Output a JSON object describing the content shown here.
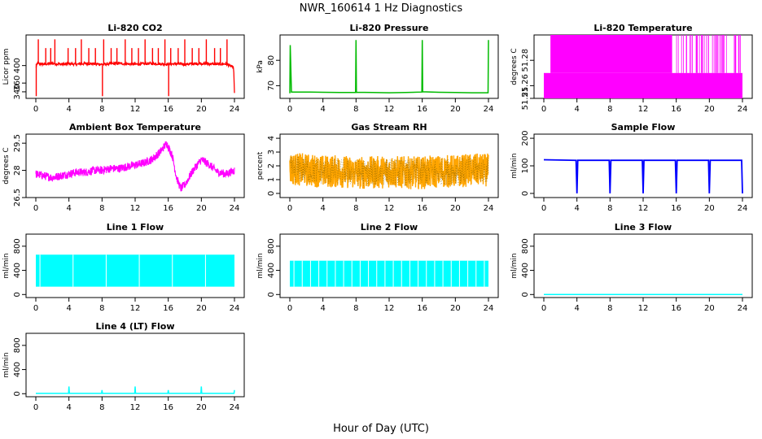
{
  "figure": {
    "title": "NWR_160614  1 Hz Diagnostics",
    "xlabel": "Hour of Day (UTC)"
  },
  "chart_data": [
    {
      "type": "line",
      "title": "Li-820 CO2",
      "ylabel": "Licor ppm",
      "xlim": [
        0,
        24
      ],
      "ylim": [
        325,
        470
      ],
      "xticks": [
        0,
        4,
        8,
        12,
        16,
        20,
        24
      ],
      "yticks": [
        340,
        360,
        400
      ],
      "color": "#ff0000",
      "series": [
        {
          "x": [
            0,
            0.2,
            0.5,
            1,
            1.5,
            2,
            2.5,
            3,
            4,
            5,
            6,
            7,
            8,
            9,
            10,
            11,
            12,
            13,
            14,
            15,
            16,
            17,
            18,
            19,
            20,
            21,
            22,
            23,
            23.9,
            24
          ],
          "y": [
            395,
            405,
            404,
            403,
            404,
            405,
            404,
            403,
            404,
            403,
            405,
            404,
            403,
            404,
            405,
            404,
            403,
            404,
            405,
            404,
            403,
            404,
            403,
            404,
            405,
            404,
            403,
            404,
            395,
            335
          ]
        }
      ]
    },
    {
      "type": "line",
      "title": "Li-820 Pressure",
      "ylabel": "kPa",
      "xlim": [
        0,
        24
      ],
      "ylim": [
        65,
        90
      ],
      "xticks": [
        0,
        4,
        8,
        12,
        16,
        20,
        24
      ],
      "yticks": [
        70,
        80
      ],
      "color": "#00bb00",
      "series": [
        {
          "x": [
            0,
            0.05,
            0.2,
            2,
            4,
            6,
            7.95,
            8,
            8.05,
            10,
            12,
            14,
            15.95,
            16,
            16.05,
            18,
            20,
            22,
            23.95,
            24
          ],
          "y": [
            67,
            86,
            67.5,
            67.5,
            67.4,
            67.3,
            67.3,
            88,
            67.4,
            67.3,
            67.2,
            67.3,
            67.5,
            88,
            67.6,
            67.4,
            67.3,
            67.2,
            67.2,
            88
          ]
        }
      ]
    },
    {
      "type": "line",
      "title": "Li-820 Temperature",
      "ylabel": "degrees C",
      "xlim": [
        0,
        24
      ],
      "ylim": [
        51.25,
        51.3
      ],
      "xticks": [
        0,
        4,
        8,
        12,
        16,
        20,
        24
      ],
      "yticks": [
        51.25,
        51.26,
        51.28
      ],
      "color": "#ff00ff",
      "series": [
        {
          "x": [
            0,
            0.8,
            15.5,
            16.8,
            24
          ],
          "y": [
            51.27,
            51.3,
            51.3,
            51.27,
            51.27
          ]
        }
      ]
    },
    {
      "type": "line",
      "title": "Ambient Box Temperature",
      "ylabel": "degrees C",
      "xlim": [
        0,
        24
      ],
      "ylim": [
        26.5,
        30
      ],
      "xticks": [
        0,
        4,
        8,
        12,
        16,
        20,
        24
      ],
      "yticks": [
        26.5,
        28.0,
        29.5
      ],
      "color": "#ff00ff",
      "series": [
        {
          "x": [
            0,
            1,
            2,
            3,
            4,
            5,
            6,
            7,
            8,
            9,
            10,
            11,
            12,
            13,
            14,
            15,
            15.8,
            16.5,
            17,
            17.5,
            18,
            19,
            20,
            21,
            22,
            23,
            24
          ],
          "y": [
            27.8,
            27.7,
            27.6,
            27.7,
            27.8,
            27.9,
            27.9,
            28.0,
            28.0,
            28.1,
            28.1,
            28.2,
            28.3,
            28.4,
            28.6,
            29.0,
            29.5,
            28.8,
            27.6,
            27.0,
            27.2,
            28.0,
            28.6,
            28.3,
            27.9,
            27.8,
            28.0
          ]
        }
      ]
    },
    {
      "type": "line",
      "title": "Gas Stream RH",
      "ylabel": "percent",
      "xlim": [
        0,
        24
      ],
      "ylim": [
        -0.3,
        4.3
      ],
      "xticks": [
        0,
        4,
        8,
        12,
        16,
        20,
        24
      ],
      "yticks": [
        0,
        1,
        2,
        3,
        4
      ],
      "color": "#ffa500",
      "series": [
        {
          "x": [
            0,
            2,
            4,
            6,
            8,
            10,
            12,
            14,
            16,
            18,
            20,
            22,
            24
          ],
          "y": [
            1.8,
            1.7,
            1.6,
            1.6,
            1.5,
            1.5,
            1.6,
            1.5,
            1.5,
            1.6,
            1.6,
            1.7,
            1.7
          ]
        }
      ]
    },
    {
      "type": "line",
      "title": "Sample Flow",
      "ylabel": "ml/min",
      "xlim": [
        0,
        24
      ],
      "ylim": [
        -15,
        215
      ],
      "xticks": [
        0,
        4,
        8,
        12,
        16,
        20,
        24
      ],
      "yticks": [
        0,
        100,
        200
      ],
      "color": "#0000ff",
      "series": [
        {
          "x": [
            0,
            3.9,
            4,
            4.1,
            7.9,
            8,
            8.1,
            11.9,
            12,
            12.1,
            15.9,
            16,
            16.1,
            19.9,
            20,
            20.1,
            23.9,
            24
          ],
          "y": [
            122,
            120,
            0,
            120,
            120,
            0,
            120,
            120,
            0,
            120,
            120,
            0,
            120,
            120,
            0,
            120,
            120,
            0
          ]
        }
      ]
    },
    {
      "type": "line",
      "title": "Line 1 Flow",
      "ylabel": "ml/min",
      "xlim": [
        0,
        24
      ],
      "ylim": [
        -50,
        1000
      ],
      "xticks": [
        0,
        4,
        8,
        12,
        16,
        20,
        24
      ],
      "yticks": [
        0,
        400,
        800
      ],
      "color": "#00ffff",
      "series": [
        {
          "x": [
            0,
            24
          ],
          "y": [
            400,
            400
          ]
        }
      ]
    },
    {
      "type": "line",
      "title": "Line 2 Flow",
      "ylabel": "ml/min",
      "xlim": [
        0,
        24
      ],
      "ylim": [
        -50,
        1000
      ],
      "xticks": [
        0,
        4,
        8,
        12,
        16,
        20,
        24
      ],
      "yticks": [
        0,
        400,
        800
      ],
      "color": "#00ffff",
      "series": [
        {
          "x": [
            0,
            24
          ],
          "y": [
            340,
            340
          ]
        }
      ]
    },
    {
      "type": "line",
      "title": "Line 3 Flow",
      "ylabel": "ml/min",
      "xlim": [
        0,
        24
      ],
      "ylim": [
        -50,
        1000
      ],
      "xticks": [
        0,
        4,
        8,
        12,
        16,
        20,
        24
      ],
      "yticks": [
        0,
        400,
        800
      ],
      "color": "#00ffff",
      "series": [
        {
          "x": [
            0,
            24
          ],
          "y": [
            0,
            0
          ]
        }
      ]
    },
    {
      "type": "line",
      "title": "Line 4 (LT) Flow",
      "ylabel": "ml/min",
      "xlim": [
        0,
        24
      ],
      "ylim": [
        -50,
        1000
      ],
      "xticks": [
        0,
        4,
        8,
        12,
        16,
        20,
        24
      ],
      "yticks": [
        0,
        400,
        800
      ],
      "color": "#00ffff",
      "series": [
        {
          "x": [
            0,
            3.95,
            4,
            4.05,
            7.95,
            8,
            8.05,
            11.95,
            12,
            12.05,
            15.95,
            16,
            16.05,
            19.95,
            20,
            20.05,
            23.95,
            24
          ],
          "y": [
            5,
            5,
            120,
            5,
            5,
            60,
            5,
            5,
            120,
            5,
            5,
            60,
            5,
            5,
            120,
            5,
            5,
            60
          ]
        }
      ]
    }
  ]
}
